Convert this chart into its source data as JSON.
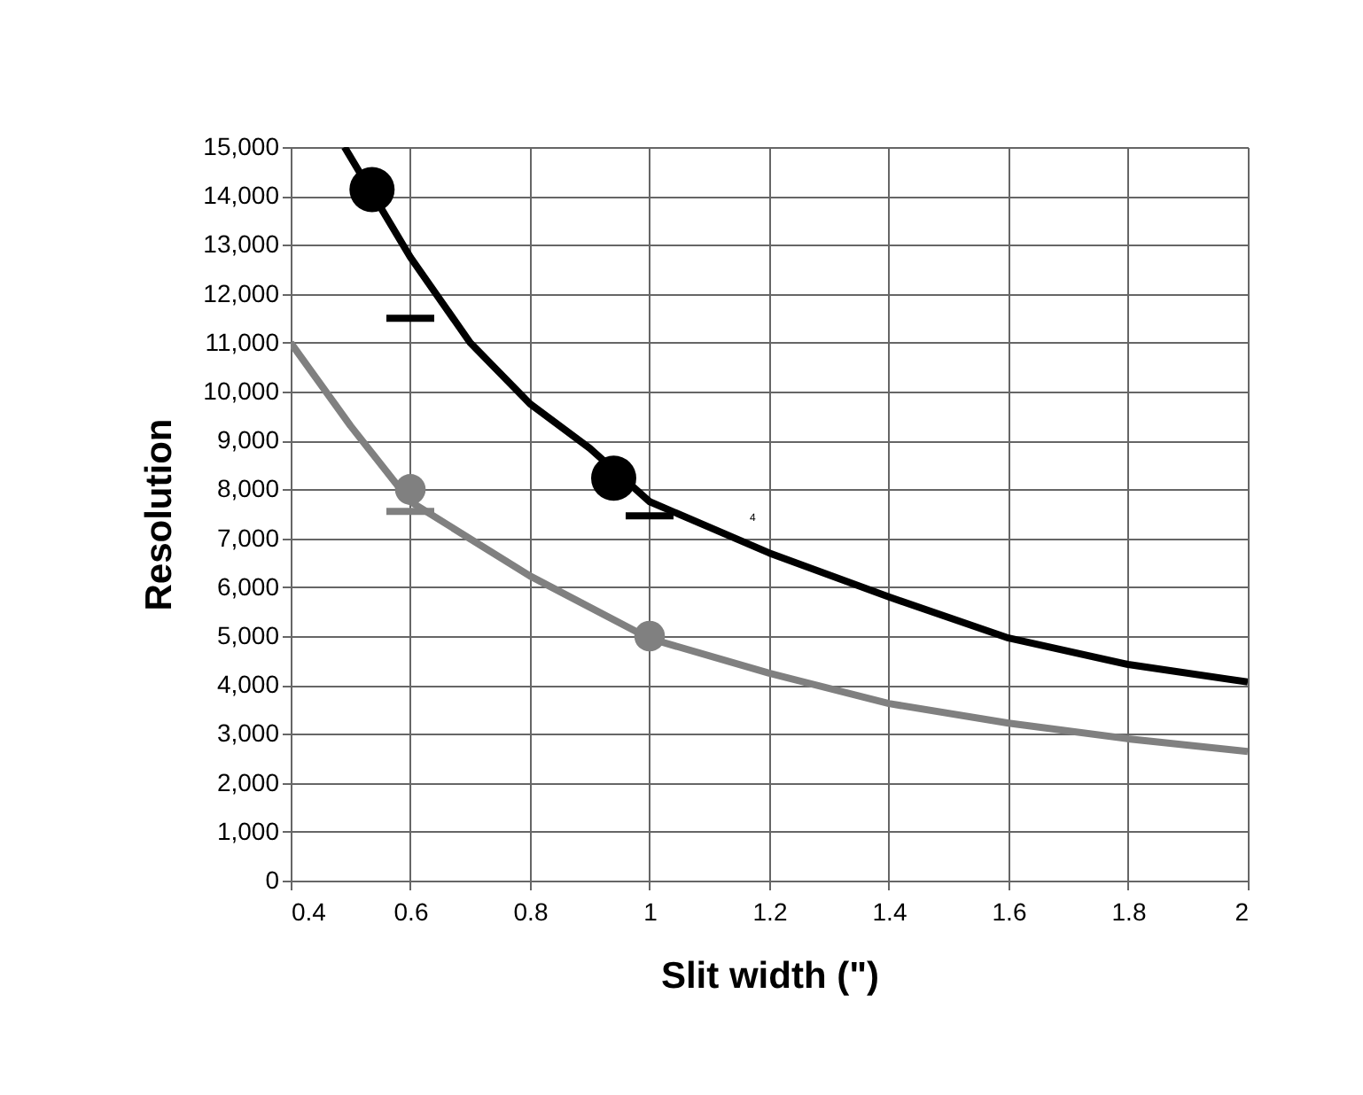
{
  "chart_data": {
    "type": "line",
    "xlabel": "Slit width (\")",
    "ylabel": "Resolution",
    "xlim": [
      0.4,
      2
    ],
    "ylim": [
      0,
      15000
    ],
    "xticks": [
      0.4,
      0.6,
      0.8,
      1,
      1.2,
      1.4,
      1.6,
      1.8,
      2
    ],
    "yticks": [
      {
        "value": 0,
        "label": "0"
      },
      {
        "value": 1000,
        "label": "1,000"
      },
      {
        "value": 2000,
        "label": "2,000"
      },
      {
        "value": 3000,
        "label": "3,000"
      },
      {
        "value": 4000,
        "label": "4,000"
      },
      {
        "value": 5000,
        "label": "5,000"
      },
      {
        "value": 6000,
        "label": "6,000"
      },
      {
        "value": 7000,
        "label": "7,000"
      },
      {
        "value": 8000,
        "label": "8,000"
      },
      {
        "value": 9000,
        "label": "9,000"
      },
      {
        "value": 10000,
        "label": "10,000"
      },
      {
        "value": 11000,
        "label": "11,000"
      },
      {
        "value": 12000,
        "label": "12,000"
      },
      {
        "value": 13000,
        "label": "13,000"
      },
      {
        "value": 14000,
        "label": "14,000"
      },
      {
        "value": 15000,
        "label": "15,000"
      }
    ],
    "grid": true,
    "annotations": [
      "4"
    ],
    "series": [
      {
        "type": "line",
        "color": "#000000",
        "x": [
          0.49,
          0.6,
          0.7,
          0.8,
          0.9,
          1.0,
          1.2,
          1.4,
          1.6,
          1.8,
          2.0
        ],
        "values": [
          15000,
          12750,
          11000,
          9750,
          8840,
          7750,
          6700,
          5800,
          4960,
          4420,
          4060
        ]
      },
      {
        "type": "line",
        "color": "#808080",
        "x": [
          0.4,
          0.5,
          0.6,
          0.8,
          1.0,
          1.2,
          1.4,
          1.6,
          1.8,
          2.0
        ],
        "values": [
          11000,
          9300,
          7750,
          6230,
          4950,
          4240,
          3620,
          3220,
          2900,
          2640
        ]
      },
      {
        "type": "scatter",
        "marker": "circle",
        "color": "#000000",
        "x": [
          0.536,
          0.94
        ],
        "values": [
          14130,
          8230
        ]
      },
      {
        "type": "scatter",
        "marker": "circle",
        "color": "#808080",
        "x": [
          0.6,
          1.0
        ],
        "values": [
          8000,
          5000
        ]
      },
      {
        "type": "line",
        "color": "#000000",
        "x": [
          0.56,
          0.64
        ],
        "values": [
          11500,
          11500
        ]
      },
      {
        "type": "line",
        "color": "#000000",
        "x": [
          0.96,
          1.04
        ],
        "values": [
          7460,
          7460
        ]
      },
      {
        "type": "line",
        "color": "#808080",
        "x": [
          0.56,
          0.64
        ],
        "values": [
          7550,
          7550
        ]
      }
    ]
  }
}
